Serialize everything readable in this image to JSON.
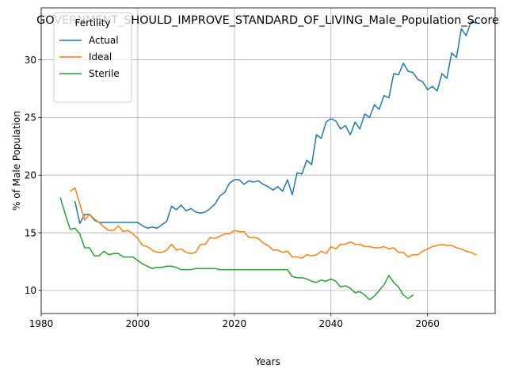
{
  "chart_data": {
    "type": "line",
    "title": "GOVERNMENT_SHOULD_IMPROVE_STANDARD_OF_LIVING_Male_Population_Score",
    "xlabel": "Years",
    "ylabel": "% of Male Population",
    "xlim": [
      1980,
      2074
    ],
    "ylim": [
      8.0,
      34.5
    ],
    "xticks": [
      1980,
      2000,
      2020,
      2040,
      2060
    ],
    "yticks": [
      10,
      15,
      20,
      25,
      30
    ],
    "grid": true,
    "legend": {
      "title": "Fertility",
      "position": "top-left"
    },
    "series": [
      {
        "name": "Actual",
        "color": "#1f77b4",
        "x": [
          1987,
          1988,
          1989,
          1990,
          1991,
          1992,
          1993,
          1994,
          1995,
          1996,
          1997,
          1998,
          1999,
          2000,
          2001,
          2002,
          2003,
          2004,
          2005,
          2006,
          2007,
          2008,
          2009,
          2010,
          2011,
          2012,
          2013,
          2014,
          2015,
          2016,
          2017,
          2018,
          2019,
          2020,
          2021,
          2022,
          2023,
          2024,
          2025,
          2026,
          2027,
          2028,
          2029,
          2030,
          2031,
          2032,
          2033,
          2034,
          2035,
          2036,
          2037,
          2038,
          2039,
          2040,
          2041,
          2042,
          2043,
          2044,
          2045,
          2046,
          2047,
          2048,
          2049,
          2050,
          2051,
          2052,
          2053,
          2054,
          2055,
          2056,
          2057,
          2058,
          2059,
          2060,
          2061,
          2062,
          2063,
          2064,
          2065,
          2066,
          2067,
          2068,
          2069,
          2070
        ],
        "values": [
          17.7,
          15.8,
          16.6,
          16.6,
          16.1,
          15.9,
          15.9,
          15.9,
          15.9,
          15.9,
          15.9,
          15.9,
          15.9,
          15.9,
          15.6,
          15.4,
          15.5,
          15.4,
          15.7,
          16.0,
          17.3,
          17.0,
          17.4,
          16.9,
          17.1,
          16.8,
          16.7,
          16.8,
          17.1,
          17.5,
          18.2,
          18.5,
          19.3,
          19.6,
          19.6,
          19.2,
          19.5,
          19.4,
          19.5,
          19.2,
          19.0,
          18.7,
          19.0,
          18.6,
          19.6,
          18.3,
          20.2,
          20.1,
          21.3,
          20.9,
          23.5,
          23.2,
          24.6,
          24.9,
          24.7,
          24.0,
          24.3,
          23.5,
          24.6,
          24.0,
          25.3,
          25.0,
          26.1,
          25.7,
          26.9,
          26.7,
          28.8,
          28.7,
          29.7,
          29.0,
          28.9,
          28.3,
          28.1,
          27.4,
          27.7,
          27.3,
          28.8,
          28.4,
          30.6,
          30.2,
          32.7,
          32.1,
          33.3,
          33.2
        ]
      },
      {
        "name": "Ideal",
        "color": "#ff7f0e",
        "x": [
          1986,
          1987,
          1988,
          1989,
          1990,
          1991,
          1992,
          1993,
          1994,
          1995,
          1996,
          1997,
          1998,
          1999,
          2000,
          2001,
          2002,
          2003,
          2004,
          2005,
          2006,
          2007,
          2008,
          2009,
          2010,
          2011,
          2012,
          2013,
          2014,
          2015,
          2016,
          2017,
          2018,
          2019,
          2020,
          2021,
          2022,
          2023,
          2024,
          2025,
          2026,
          2027,
          2028,
          2029,
          2030,
          2031,
          2032,
          2033,
          2034,
          2035,
          2036,
          2037,
          2038,
          2039,
          2040,
          2041,
          2042,
          2043,
          2044,
          2045,
          2046,
          2047,
          2048,
          2049,
          2050,
          2051,
          2052,
          2053,
          2054,
          2055,
          2056,
          2057,
          2058,
          2059,
          2060,
          2061,
          2062,
          2063,
          2064,
          2065,
          2066,
          2067,
          2068,
          2069,
          2070
        ],
        "values": [
          18.6,
          18.9,
          17.5,
          16.1,
          16.6,
          16.2,
          15.9,
          15.5,
          15.2,
          15.2,
          15.6,
          15.1,
          15.2,
          14.9,
          14.5,
          13.9,
          13.8,
          13.5,
          13.3,
          13.3,
          13.5,
          14.0,
          13.5,
          13.6,
          13.3,
          13.2,
          13.3,
          14.0,
          14.0,
          14.6,
          14.5,
          14.7,
          14.9,
          14.9,
          15.2,
          15.1,
          15.1,
          14.6,
          14.6,
          14.5,
          14.1,
          13.9,
          13.5,
          13.5,
          13.3,
          13.4,
          12.9,
          12.9,
          12.8,
          13.1,
          13.0,
          13.1,
          13.4,
          13.2,
          13.8,
          13.6,
          14.0,
          14.0,
          14.2,
          14.0,
          14.0,
          13.8,
          13.8,
          13.7,
          13.7,
          13.8,
          13.6,
          13.7,
          13.3,
          13.3,
          12.9,
          13.1,
          13.1,
          13.4,
          13.6,
          13.8,
          13.9,
          14.0,
          13.9,
          13.9,
          13.7,
          13.6,
          13.4,
          13.3,
          13.1
        ]
      },
      {
        "name": "Sterile",
        "color": "#2ca02c",
        "x": [
          1984,
          1985,
          1986,
          1987,
          1988,
          1989,
          1990,
          1991,
          1992,
          1993,
          1994,
          1995,
          1996,
          1997,
          1998,
          1999,
          2000,
          2001,
          2002,
          2003,
          2004,
          2005,
          2006,
          2007,
          2008,
          2009,
          2010,
          2011,
          2012,
          2013,
          2014,
          2015,
          2016,
          2017,
          2018,
          2019,
          2020,
          2021,
          2022,
          2023,
          2024,
          2025,
          2026,
          2027,
          2028,
          2029,
          2030,
          2031,
          2032,
          2033,
          2034,
          2035,
          2036,
          2037,
          2038,
          2039,
          2040,
          2041,
          2042,
          2043,
          2044,
          2045,
          2046,
          2047,
          2048,
          2049,
          2050,
          2051,
          2052,
          2053,
          2054,
          2055,
          2056,
          2057
        ],
        "values": [
          18.0,
          16.6,
          15.3,
          15.4,
          14.9,
          13.7,
          13.7,
          13.0,
          13.0,
          13.4,
          13.1,
          13.2,
          13.2,
          12.9,
          12.9,
          12.9,
          12.6,
          12.3,
          12.1,
          11.9,
          12.0,
          12.0,
          12.1,
          12.1,
          12.0,
          11.8,
          11.8,
          11.8,
          11.9,
          11.9,
          11.9,
          11.9,
          11.9,
          11.8,
          11.8,
          11.8,
          11.8,
          11.8,
          11.8,
          11.8,
          11.8,
          11.8,
          11.8,
          11.8,
          11.8,
          11.8,
          11.8,
          11.8,
          11.2,
          11.1,
          11.1,
          11.0,
          10.8,
          10.7,
          10.9,
          10.8,
          11.0,
          10.8,
          10.3,
          10.4,
          10.2,
          9.8,
          9.9,
          9.6,
          9.2,
          9.5,
          10.0,
          10.5,
          11.3,
          10.7,
          10.3,
          9.6,
          9.3,
          9.6
        ]
      }
    ]
  }
}
